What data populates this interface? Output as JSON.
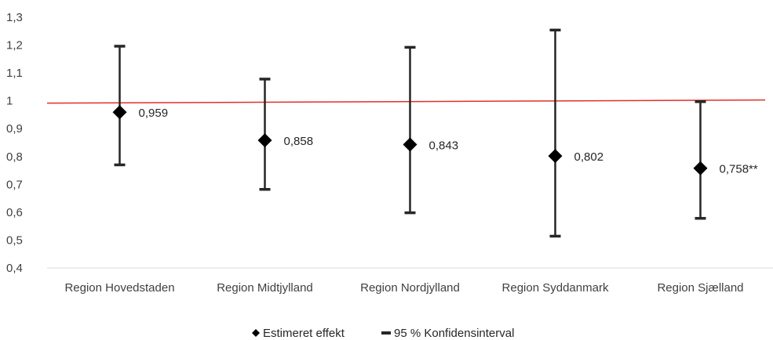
{
  "chart_data": {
    "type": "scatter",
    "categories": [
      "Region Hovedstaden",
      "Region Midtjylland",
      "Region Nordjylland",
      "Region Syddanmark",
      "Region Sjælland"
    ],
    "series": [
      {
        "name": "Estimeret effekt",
        "values": [
          0.959,
          0.858,
          0.843,
          0.802,
          0.758
        ]
      },
      {
        "name": "95 % Konfidensinterval",
        "lower": [
          0.77,
          0.682,
          0.598,
          0.514,
          0.578
        ],
        "upper": [
          1.196,
          1.078,
          1.192,
          1.254,
          0.997
        ]
      }
    ],
    "data_labels": [
      "0,959",
      "0,858",
      "0,843",
      "0,802",
      "0,758**"
    ],
    "reference_line": {
      "value": 1,
      "color": "#e0302a"
    },
    "y_ticks": [
      "0,4",
      "0,5",
      "0,6",
      "0,7",
      "0,8",
      "0,9",
      "1",
      "1,1",
      "1,2",
      "1,3"
    ],
    "ylim": [
      0.4,
      1.3
    ],
    "grid": false,
    "legend_position": "bottom",
    "marker_color": "#000000",
    "errorbar_color": "#262626"
  }
}
